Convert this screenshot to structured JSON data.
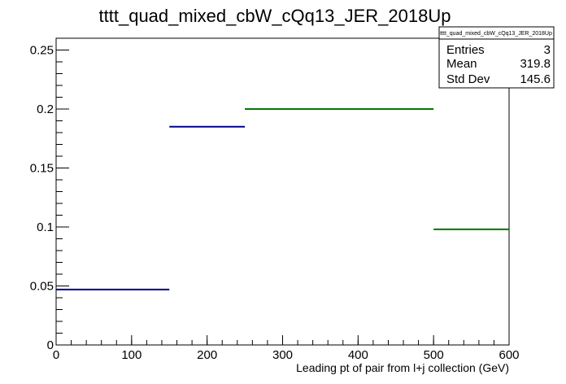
{
  "chart_data": {
    "type": "histogram",
    "title": "tttt_quad_mixed_cbW_cQq13_JER_2018Up",
    "xlabel": "Leading pt of pair from l+j collection (GeV)",
    "ylabel": "",
    "xlim": [
      0,
      600
    ],
    "ylim": [
      0,
      0.26
    ],
    "x_ticks": [
      "0",
      "100",
      "200",
      "300",
      "400",
      "500",
      "600"
    ],
    "y_ticks": [
      "0",
      "0.05",
      "0.1",
      "0.15",
      "0.2",
      "0.25"
    ],
    "bins": [
      {
        "x0": 0,
        "x1": 150,
        "y": 0.047,
        "color": "#00008b"
      },
      {
        "x0": 150,
        "x1": 250,
        "y": 0.185,
        "color": "#00008b"
      },
      {
        "x0": 250,
        "x1": 500,
        "y": 0.2,
        "color": "#007800"
      },
      {
        "x0": 500,
        "x1": 600,
        "y": 0.098,
        "color": "#007800"
      }
    ],
    "grid": false
  },
  "stats_box": {
    "title": "tttt_quad_mixed_cbW_cQq13_JER_2018Up",
    "rows": [
      {
        "label": "Entries",
        "value": "3"
      },
      {
        "label": "Mean",
        "value": "319.8"
      },
      {
        "label": "Std Dev",
        "value": "145.6"
      }
    ]
  }
}
